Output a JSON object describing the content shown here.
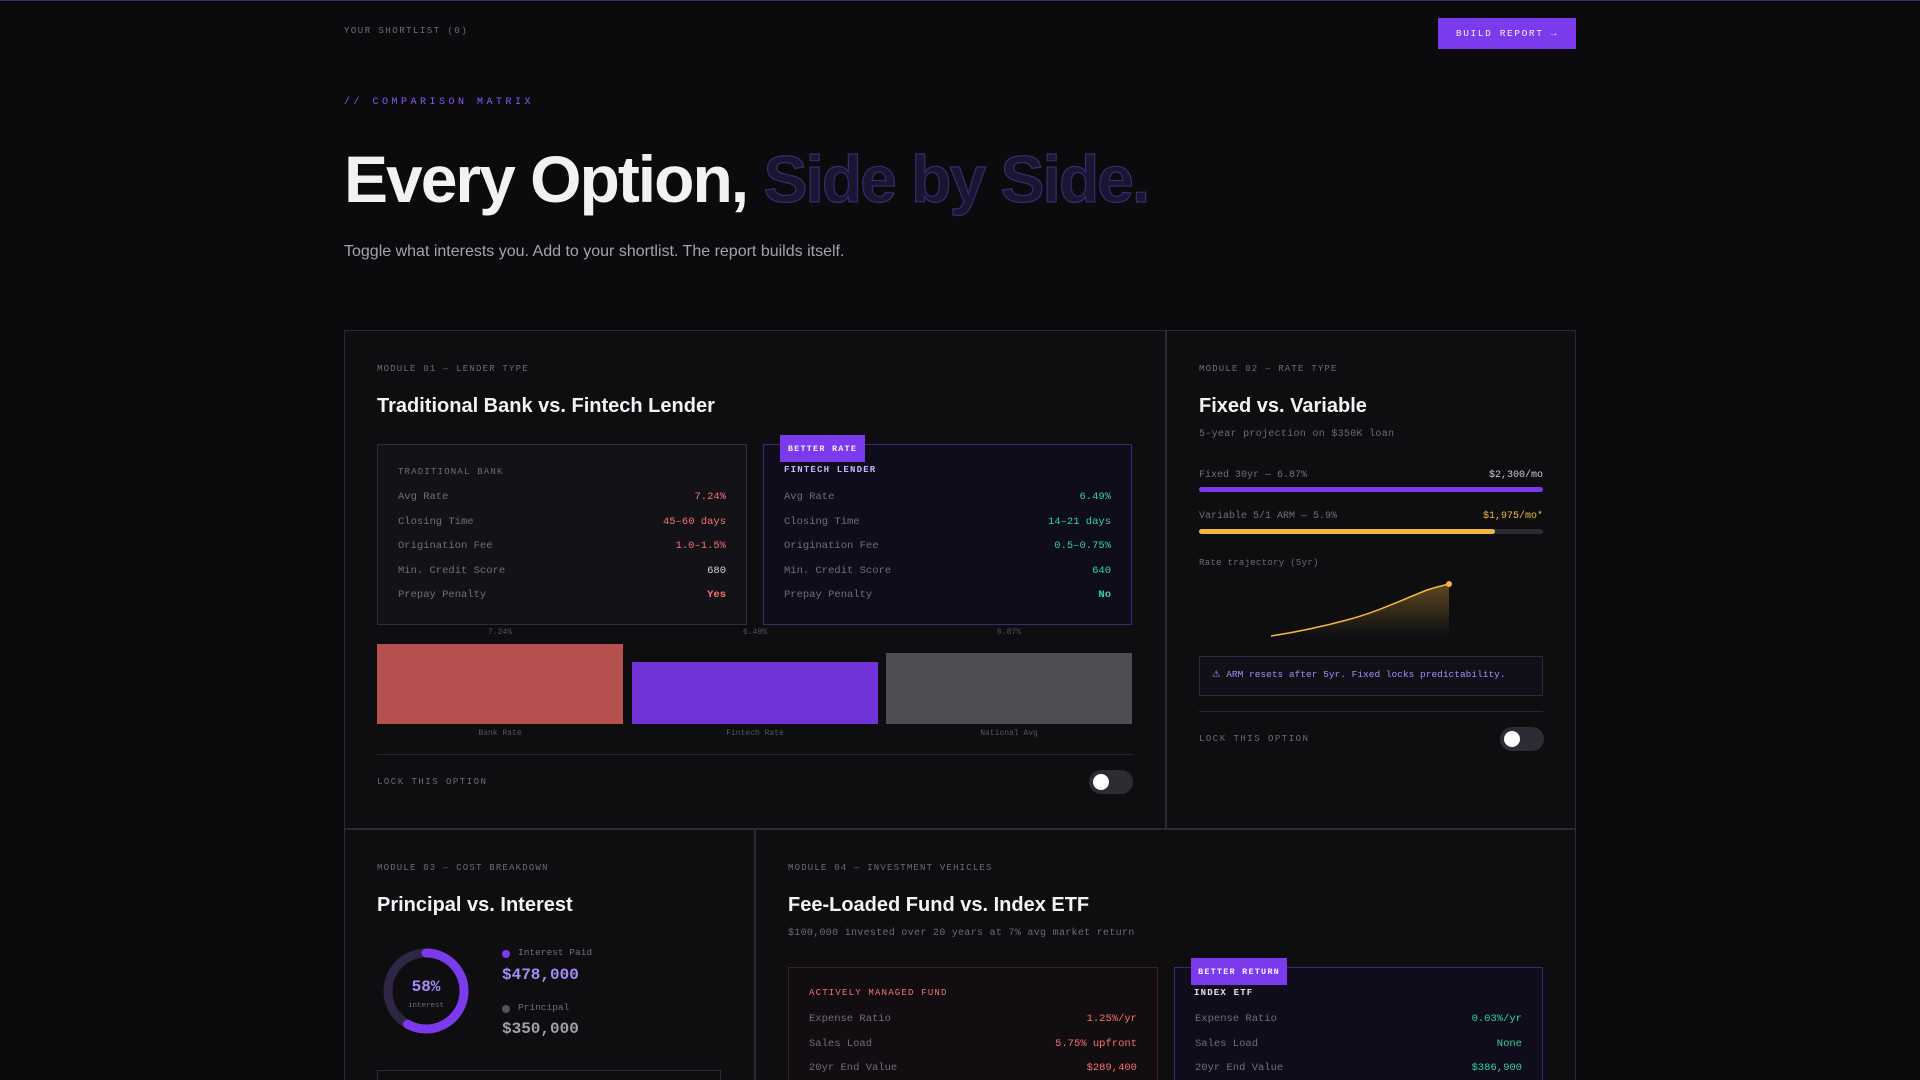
{
  "header": {
    "shortlist": "YOUR SHORTLIST (0)",
    "build_button": "BUILD REPORT →"
  },
  "hero": {
    "eyebrow": "// COMPARISON MATRIX",
    "title_solid": "Every Option,",
    "title_ghost": "Side by Side.",
    "subtitle": "Toggle what interests you. Add to your shortlist. The report builds itself."
  },
  "module1": {
    "label": "MODULE 01 — LENDER TYPE",
    "title": "Traditional Bank vs. Fintech Lender",
    "bank": {
      "heading": "TRADITIONAL BANK",
      "rows": [
        {
          "k": "Avg Rate",
          "v": "7.24%"
        },
        {
          "k": "Closing Time",
          "v": "45–60 days"
        },
        {
          "k": "Origination Fee",
          "v": "1.0–1.5%"
        },
        {
          "k": "Min. Credit Score",
          "v": "680"
        },
        {
          "k": "Prepay Penalty",
          "v": "Yes"
        }
      ]
    },
    "fintech": {
      "badge": "BETTER RATE",
      "heading": "FINTECH LENDER",
      "rows": [
        {
          "k": "Avg Rate",
          "v": "6.49%"
        },
        {
          "k": "Closing Time",
          "v": "14–21 days"
        },
        {
          "k": "Origination Fee",
          "v": "0.5–0.75%"
        },
        {
          "k": "Min. Credit Score",
          "v": "640"
        },
        {
          "k": "Prepay Penalty",
          "v": "No"
        }
      ]
    },
    "chart": {
      "bars": [
        {
          "label": "Bank Rate",
          "value_label": "7.24%",
          "value": 7.24,
          "color": "#b5524f"
        },
        {
          "label": "Fintech Rate",
          "value_label": "6.49%",
          "value": 6.49,
          "color": "#7133d8"
        },
        {
          "label": "National Avg",
          "value_label": "6.87%",
          "value": 6.87,
          "color": "#4d4d52"
        }
      ]
    },
    "lock": "LOCK THIS OPTION"
  },
  "module2": {
    "label": "MODULE 02 — RATE TYPE",
    "title": "Fixed vs. Variable",
    "subtitle": "5-year projection on $350K loan",
    "fixed": {
      "label": "Fixed 30yr — 6.87%",
      "value": "$2,300/mo",
      "fill": 1.0,
      "color": "#7c3aed"
    },
    "variable": {
      "label": "Variable 5/1 ARM — 5.9%",
      "value": "$1,975/mo*",
      "fill": 0.86,
      "color": "#f4b63f"
    },
    "trajectory_label": "Rate trajectory (5yr)",
    "note": "⚠ ARM resets after 5yr. Fixed locks predictability.",
    "lock": "LOCK THIS OPTION"
  },
  "module3": {
    "label": "MODULE 03 — COST BREAKDOWN",
    "title": "Principal vs. Interest",
    "donut_pct": "58%",
    "donut_sub": "interest",
    "interest_fraction": 0.58,
    "interest_label": "Interest Paid",
    "interest_value": "$478,000",
    "principal_label": "Principal",
    "principal_value": "$350,000"
  },
  "module4": {
    "label": "MODULE 04 — INVESTMENT VEHICLES",
    "title": "Fee-Loaded Fund vs. Index ETF",
    "subtitle": "$100,000 invested over 20 years at 7% avg market return",
    "fund": {
      "heading": "ACTIVELY MANAGED FUND",
      "rows": [
        {
          "k": "Expense Ratio",
          "v": "1.25%/yr"
        },
        {
          "k": "Sales Load",
          "v": "5.75% upfront"
        },
        {
          "k": "20yr End Value",
          "v": "$289,400"
        }
      ]
    },
    "etf": {
      "badge": "BETTER RETURN",
      "heading": "INDEX ETF",
      "rows": [
        {
          "k": "Expense Ratio",
          "v": "0.03%/yr"
        },
        {
          "k": "Sales Load",
          "v": "None"
        },
        {
          "k": "20yr End Value",
          "v": "$386,900"
        }
      ]
    }
  }
}
